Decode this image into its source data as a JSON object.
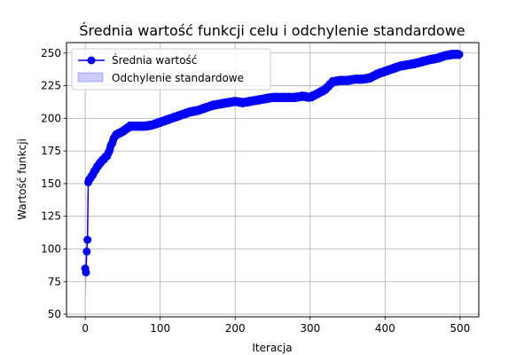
{
  "chart_data": {
    "type": "line",
    "title": "Średnia wartość funkcji celu i odchylenie standardowe",
    "xlabel": "Iteracja",
    "ylabel": "Wartość funkcji",
    "xlim": [
      -25,
      525
    ],
    "ylim": [
      48,
      258
    ],
    "xticks": [
      0,
      100,
      200,
      300,
      400,
      500
    ],
    "yticks": [
      50,
      75,
      100,
      125,
      150,
      175,
      200,
      225,
      250
    ],
    "grid": true,
    "legend_position": "upper-left",
    "colors": {
      "line": "#0000ff",
      "band": "#0000ff",
      "grid": "#b0b0b0"
    },
    "series": [
      {
        "name": "Średnia wartość",
        "kind": "line-markers"
      },
      {
        "name": "Odchylenie standardowe",
        "kind": "band"
      }
    ],
    "mean_anchor_points": {
      "x": [
        0,
        1,
        2,
        3,
        4,
        5,
        8,
        10,
        15,
        20,
        30,
        35,
        40,
        50,
        60,
        80,
        90,
        100,
        120,
        140,
        150,
        160,
        170,
        180,
        190,
        200,
        210,
        220,
        230,
        240,
        250,
        260,
        270,
        280,
        290,
        300,
        310,
        320,
        330,
        340,
        350,
        360,
        370,
        380,
        390,
        400,
        420,
        440,
        460,
        470,
        480,
        490,
        499
      ],
      "y": [
        85,
        82,
        98,
        107,
        151,
        153,
        155,
        157,
        162,
        166,
        172,
        180,
        187,
        190,
        194,
        194,
        195,
        197,
        201,
        205,
        206,
        208,
        210,
        211,
        212,
        213,
        212,
        213,
        214,
        215,
        216,
        216,
        216,
        216,
        217,
        216,
        219,
        222,
        228,
        229,
        229,
        230,
        230,
        231,
        234,
        236,
        240,
        242,
        245,
        246,
        248,
        249,
        249
      ]
    },
    "std_band": {
      "x": [
        0,
        1,
        2,
        3,
        4,
        5,
        6
      ],
      "lower": [
        74,
        60,
        88,
        100,
        150,
        152,
        154
      ],
      "upper": [
        96,
        104,
        108,
        114,
        152,
        154,
        156
      ]
    }
  }
}
